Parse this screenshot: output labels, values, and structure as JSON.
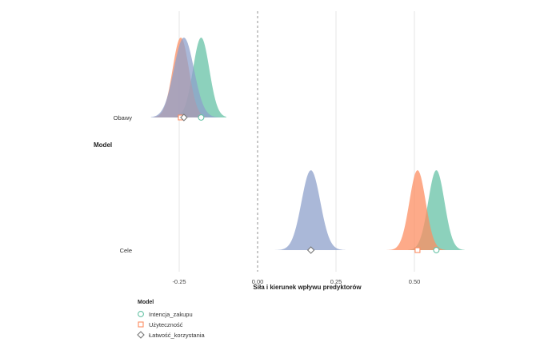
{
  "chart_data": {
    "type": "area",
    "title": "",
    "xlabel": "Siła i kierunek wpływu predyktorów",
    "ylabel": "Model",
    "xlim": [
      -0.4,
      0.67
    ],
    "x_ticks": [
      {
        "value": -0.25,
        "label": "-0.25"
      },
      {
        "value": 0.0,
        "label": "0.00"
      },
      {
        "value": 0.25,
        "label": "0.25"
      },
      {
        "value": 0.5,
        "label": "0.50"
      }
    ],
    "reference_line": {
      "x": 0.0,
      "style": "dashed"
    },
    "grid": "vertical",
    "categories": [
      "Obawy",
      "Cele"
    ],
    "legend": {
      "title": "Model",
      "position": "bottom-left",
      "items": [
        {
          "label": "Intencja_zakupu",
          "color": "#66c2a5",
          "marker": "circle"
        },
        {
          "label": "Użyteczność",
          "color": "#fc8d62",
          "marker": "square"
        },
        {
          "label": "Łatwość_korzystania",
          "color": "#8da0cb",
          "marker": "diamond"
        }
      ]
    },
    "series": [
      {
        "name": "Intencja_zakupu",
        "color": "#66c2a5",
        "marker": "circle",
        "points": [
          {
            "category": "Obawy",
            "estimate": -0.18,
            "sd": 0.026,
            "range": [
              -0.27,
              -0.1
            ]
          },
          {
            "category": "Cele",
            "estimate": 0.57,
            "sd": 0.026,
            "range": [
              0.48,
              0.66
            ]
          }
        ]
      },
      {
        "name": "Użyteczność",
        "color": "#fc8d62",
        "marker": "square",
        "points": [
          {
            "category": "Obawy",
            "estimate": -0.245,
            "sd": 0.026,
            "range": [
              -0.33,
              -0.15
            ]
          },
          {
            "category": "Cele",
            "estimate": 0.51,
            "sd": 0.026,
            "range": [
              0.41,
              0.6
            ]
          }
        ]
      },
      {
        "name": "Łatwość_korzystania",
        "color": "#8da0cb",
        "marker": "diamond",
        "points": [
          {
            "category": "Obawy",
            "estimate": -0.235,
            "sd": 0.032,
            "range": [
              -0.34,
              -0.12
            ]
          },
          {
            "category": "Cele",
            "estimate": 0.17,
            "sd": 0.03,
            "range": [
              0.05,
              0.28
            ]
          }
        ]
      }
    ]
  }
}
